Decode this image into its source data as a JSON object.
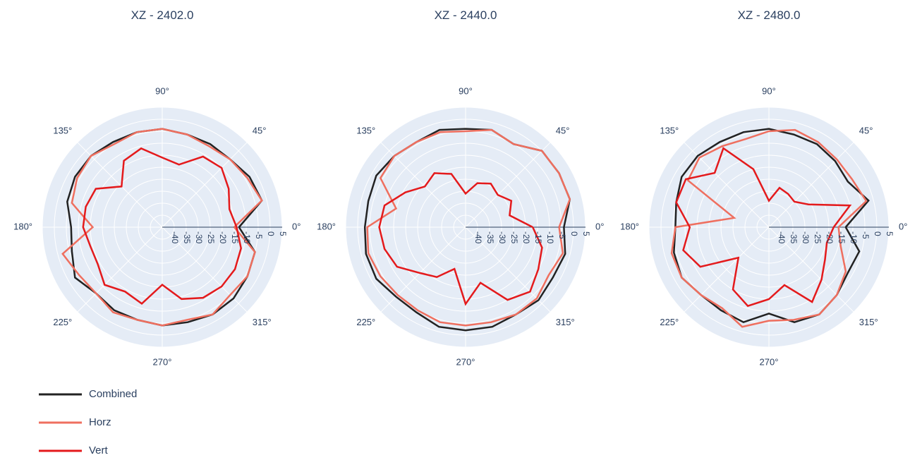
{
  "chart_data": [
    {
      "type": "polar-line",
      "title": "XZ - 2402.0",
      "angular_ticks": [
        "0°",
        "45°",
        "90°",
        "135°",
        "180°",
        "225°",
        "270°",
        "315°"
      ],
      "radial_ticks": [
        "-40",
        "-35",
        "-30",
        "-25",
        "-20",
        "-15",
        "-10",
        "-5",
        "0",
        "5"
      ],
      "radial_range": [
        -45,
        5
      ],
      "theta_step_deg": 15,
      "series": [
        {
          "name": "Combined",
          "color": "#222222",
          "values": [
            -13,
            -2,
            -3,
            -5,
            -5,
            -5,
            -4,
            -4,
            -4,
            -3,
            -3,
            -4,
            -7,
            -6,
            -3,
            -6,
            -5,
            -5,
            -4,
            -4,
            -3,
            -3,
            -4,
            -5
          ]
        },
        {
          "name": "Horz",
          "color": "#ef6f5f",
          "values": [
            -15,
            -2,
            -4,
            -5,
            -6,
            -5,
            -4,
            -4,
            -5,
            -3,
            -4,
            -6,
            -16,
            -2,
            -5,
            -6,
            -4,
            -5,
            -4,
            -5,
            -3,
            -5,
            -4,
            -5
          ]
        },
        {
          "name": "Vert",
          "color": "#e41a1c",
          "values": [
            -14,
            -16,
            -13,
            -10,
            -11,
            -18,
            -16,
            -11,
            -13,
            -21,
            -13,
            -12,
            -12,
            -14,
            -14,
            -11,
            -14,
            -12,
            -21,
            -14,
            -11,
            -10,
            -10,
            -11
          ]
        }
      ]
    },
    {
      "type": "polar-line",
      "title": "XZ - 2440.0",
      "angular_ticks": [
        "0°",
        "45°",
        "90°",
        "135°",
        "180°",
        "225°",
        "270°",
        "315°"
      ],
      "radial_ticks": [
        "-40",
        "-35",
        "-30",
        "-25",
        "-20",
        "-15",
        "-10",
        "-5",
        "0",
        "5"
      ],
      "radial_range": [
        -45,
        5
      ],
      "theta_step_deg": 15,
      "series": [
        {
          "name": "Combined",
          "color": "#222222",
          "values": [
            -4,
            0,
            0,
            0,
            -5,
            -3,
            -4,
            -3,
            -4,
            -3,
            -2,
            -3,
            -3,
            -2,
            -2,
            -4,
            -4,
            -2,
            -2,
            -2,
            -3,
            -2,
            -3,
            -2
          ]
        },
        {
          "name": "Horz",
          "color": "#ef6f5f",
          "values": [
            -6,
            0,
            0,
            0,
            -5,
            -3,
            -5,
            -4,
            -4,
            -3,
            -4,
            -15,
            -4,
            -3,
            -4,
            -5,
            -5,
            -4,
            -4,
            -4,
            -3,
            -3,
            -5,
            -3
          ]
        },
        {
          "name": "Vert",
          "color": "#e41a1c",
          "values": [
            -17,
            -26,
            -23,
            -26,
            -24,
            -26,
            -31,
            -22,
            -19,
            -21,
            -16,
            -10,
            -9,
            -10,
            -12,
            -18,
            -21,
            -27,
            -13,
            -21,
            -10,
            -7,
            -10,
            -12
          ]
        }
      ]
    },
    {
      "type": "polar-line",
      "title": "XZ - 2480.0",
      "angular_ticks": [
        "0°",
        "45°",
        "90°",
        "135°",
        "180°",
        "225°",
        "270°",
        "315°"
      ],
      "radial_ticks": [
        "-40",
        "-35",
        "-30",
        "-25",
        "-20",
        "-15",
        "-10",
        "-5",
        "0",
        "5"
      ],
      "radial_range": [
        -45,
        5
      ],
      "theta_step_deg": 15,
      "series": [
        {
          "name": "Combined",
          "color": "#222222",
          "values": [
            -13,
            -2,
            -7,
            -6,
            -5,
            -5,
            -4,
            -4,
            -4,
            -3,
            -3,
            -5,
            -6,
            -4,
            -3,
            -5,
            -5,
            -4,
            -9,
            -4,
            -3,
            -5,
            -7,
            -6
          ]
        },
        {
          "name": "Horz",
          "color": "#ef6f5f",
          "values": [
            -16,
            -3,
            -5,
            -5,
            -4,
            -3,
            -5,
            -7,
            -6,
            -4,
            -6,
            -30,
            -6,
            -3,
            -3,
            -5,
            -6,
            -2,
            -6,
            -5,
            -3,
            -5,
            -8,
            -14
          ]
        },
        {
          "name": "Vert",
          "color": "#e41a1c",
          "values": [
            -18,
            -10,
            -26,
            -30,
            -29,
            -28,
            -34,
            -20,
            -7,
            -13,
            -5,
            -5,
            -12,
            -8,
            -12,
            -27,
            -15,
            -11,
            -15,
            -20,
            -9,
            -14,
            -18,
            -20
          ]
        }
      ]
    }
  ],
  "legend": {
    "placement": "bottom-left",
    "items": [
      {
        "label": "Combined",
        "color": "#222222"
      },
      {
        "label": "Horz",
        "color": "#ef6f5f"
      },
      {
        "label": "Vert",
        "color": "#e41a1c"
      }
    ]
  },
  "colors": {
    "polar_bg": "#e5ecf6",
    "grid": "#ffffff",
    "text": "#2a3f5f"
  }
}
